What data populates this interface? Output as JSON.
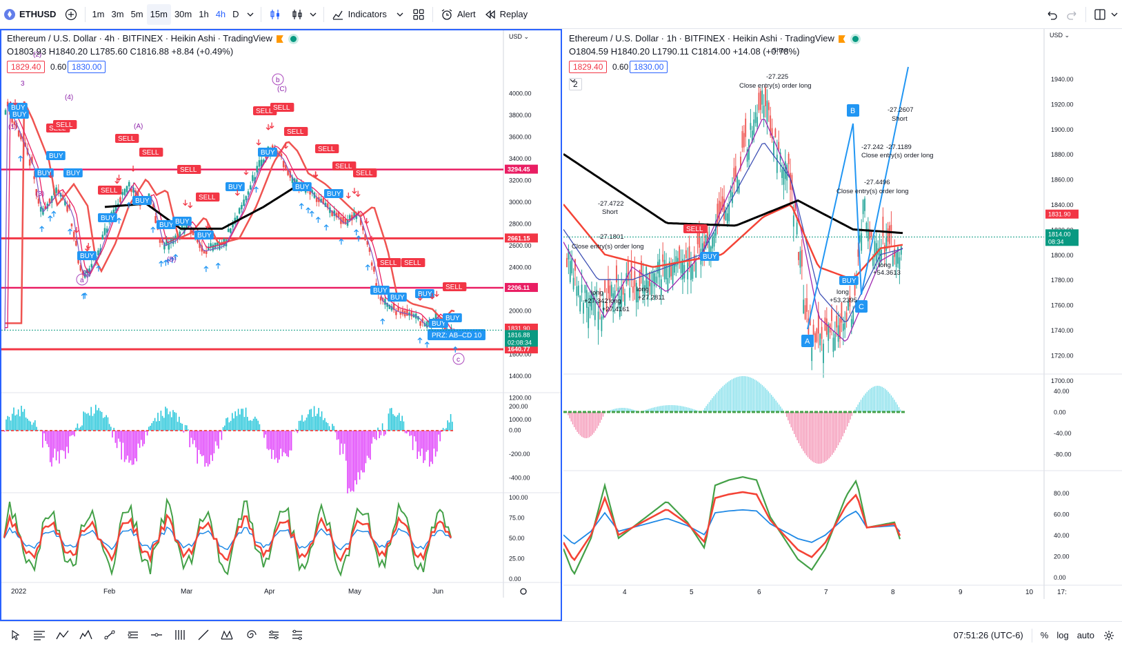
{
  "toolbar": {
    "symbol": "ETHUSD",
    "intervals": [
      "1m",
      "3m",
      "5m",
      "15m",
      "30m",
      "1h",
      "4h",
      "D"
    ],
    "indicators_label": "Indicators",
    "alert_label": "Alert",
    "replay_label": "Replay"
  },
  "left_chart": {
    "title": "Ethereum / U.S. Dollar · 4h · BITFINEX · Heikin Ashi · TradingView",
    "ohlc": "O1803.93 H1840.20 L1785.60 C1816.88 +8.84 (+0.49%)",
    "bid": "1829.40",
    "spread": "0.60",
    "ask": "1830.00",
    "currency": "USD",
    "price_ticks": [
      "4000.00",
      "3800.00",
      "3600.00",
      "3400.00",
      "3200.00",
      "3000.00",
      "2800.00",
      "2600.00",
      "2400.00",
      "2200.00",
      "2000.00",
      "1800.00",
      "1600.00",
      "1400.00",
      "1200.00",
      "1000.00"
    ],
    "levels": [
      "3294.45",
      "2661.15",
      "2206.11",
      "1640.77"
    ],
    "last_price": "1831.90",
    "close_label": "1816.88",
    "countdown": "02:08:34",
    "macd_ticks": [
      "200.00",
      "0.00",
      "-200.00",
      "-400.00"
    ],
    "rsi_ticks": [
      "100.00",
      "75.00",
      "50.00",
      "25.00",
      "0.00"
    ],
    "time_ticks": [
      "2022",
      "Feb",
      "Mar",
      "Apr",
      "May",
      "Jun"
    ],
    "wave_labels": [
      "(1)",
      "(2)",
      "3",
      "(4)",
      "(3)",
      "(5)",
      "a",
      "(A)",
      "(B)",
      "b",
      "c",
      "(C)"
    ],
    "prz_label": "PRZ: AB–CD 10",
    "signals": [
      "BUY",
      "SELL"
    ]
  },
  "right_chart": {
    "title": "Ethereum / U.S. Dollar · 1h · BITFINEX · Heikin Ashi · TradingView",
    "ohlc": "O1804.59 H1840.20 L1790.11 C1814.00 +14.08 (+0.78%)",
    "bid": "1829.40",
    "spread": "0.60",
    "ask": "1830.00",
    "pane_count": "2",
    "currency": "USD",
    "price_ticks": [
      "1940.00",
      "1920.00",
      "1900.00",
      "1880.00",
      "1860.00",
      "1840.00",
      "1820.00",
      "1800.00",
      "1780.00",
      "1760.00",
      "1740.00",
      "1720.00",
      "1700.00"
    ],
    "last_price": "1831.90",
    "close_label": "1814.00",
    "countdown": "08:34",
    "macd_ticks": [
      "40.00",
      "0.00",
      "-40.00",
      "-80.00"
    ],
    "rsi_ticks": [
      "80.00",
      "60.00",
      "40.00",
      "20.00",
      "0.00"
    ],
    "time_ticks": [
      "4",
      "5",
      "6",
      "7",
      "8",
      "9",
      "10",
      "17:"
    ],
    "annotations": [
      "-27.4722",
      "Short",
      "-27.1801",
      "Close entry(s) order long",
      "long",
      "+27.342",
      "long",
      "+27.4161",
      "long",
      "+27.2811",
      "-27.225",
      "Close entry(s) order long",
      "Short",
      "-27.2607",
      "Short",
      "-27.242",
      "-27.1189",
      "Close entry(s) order long",
      "-27.4496",
      "Close entry(s) order long",
      "long",
      "+54.3613",
      "long",
      "+53.2395"
    ],
    "pattern_points": [
      "A",
      "B",
      "C"
    ],
    "signals": [
      "SELL",
      "BUY",
      "BUY"
    ]
  },
  "bottom_bar": {
    "time": "07:51:26 (UTC-6)",
    "percent": "%",
    "log": "log",
    "auto": "auto"
  }
}
